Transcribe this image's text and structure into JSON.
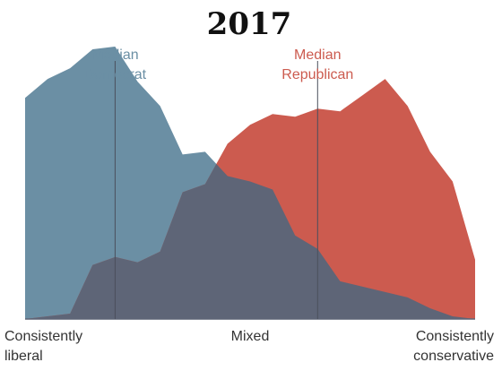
{
  "chart_data": {
    "type": "area",
    "title": "2017",
    "x": [
      0,
      1,
      2,
      3,
      4,
      5,
      6,
      7,
      8,
      9,
      10,
      11,
      12,
      13,
      14,
      15,
      16,
      17,
      18,
      19,
      20
    ],
    "xlim": [
      0,
      20
    ],
    "ylim": [
      0,
      100
    ],
    "x_tick_labels": [
      {
        "x": 0,
        "lines": [
          "Consistently",
          "liberal"
        ]
      },
      {
        "x": 10,
        "lines": [
          "Mixed"
        ]
      },
      {
        "x": 20,
        "lines": [
          "Consistently",
          "conservative"
        ]
      }
    ],
    "series": [
      {
        "key": "rep",
        "color": "#cc5b4f",
        "values": [
          0,
          1,
          2,
          20,
          23,
          21,
          25,
          47,
          50,
          65,
          72,
          76,
          75,
          78,
          77,
          83,
          89,
          79,
          62,
          51,
          22
        ]
      },
      {
        "key": "dem",
        "color": "#6b8fa4",
        "values": [
          82,
          89,
          93,
          100,
          101,
          88,
          79,
          61,
          62,
          53,
          51,
          48,
          31,
          26,
          14,
          12,
          10,
          8,
          4,
          1,
          0
        ]
      }
    ],
    "overlap_color": "#5e6577",
    "medians": [
      {
        "name": "Democrat",
        "label_lines": [
          "Median",
          "Democrat"
        ],
        "x": 4.0,
        "color": "#6b8fa4"
      },
      {
        "name": "Republican",
        "label_lines": [
          "Median",
          "Republican"
        ],
        "x": 13.0,
        "color": "#cc5b4f"
      }
    ],
    "baseline_color": "#5e6577"
  }
}
